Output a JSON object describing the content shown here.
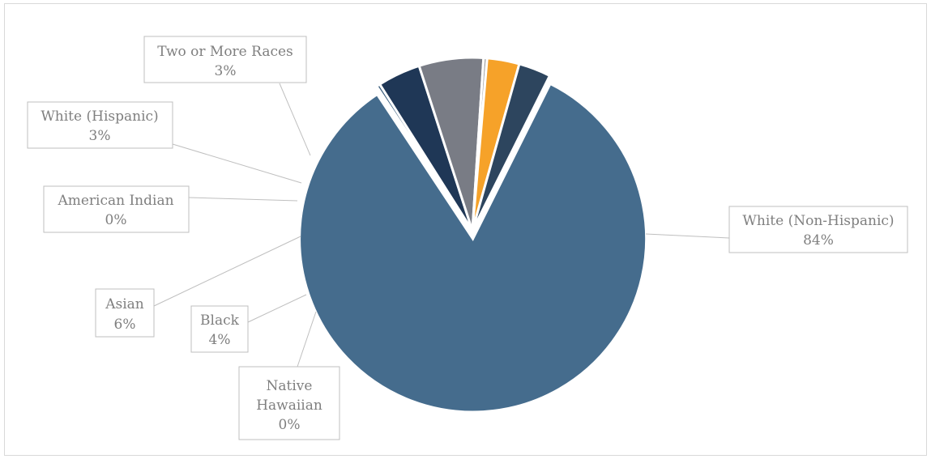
{
  "chart_data": {
    "type": "pie",
    "title": "",
    "legend": "none",
    "slices": [
      {
        "label": "White (Non-Hispanic)",
        "value": 84,
        "display": "84%",
        "color": "#456c8d"
      },
      {
        "label": "Native Hawaiian",
        "value": 0,
        "display": "0%",
        "color": "#3b5f7e"
      },
      {
        "label": "Black",
        "value": 4,
        "display": "4%",
        "color": "#1f3756"
      },
      {
        "label": "Asian",
        "value": 6,
        "display": "6%",
        "color": "#797c85"
      },
      {
        "label": "American Indian",
        "value": 0,
        "display": "0%",
        "color": "#a6a6a6"
      },
      {
        "label": "White (Hispanic)",
        "value": 3,
        "display": "3%",
        "color": "#f6a229"
      },
      {
        "label": "Two or More Races",
        "value": 3,
        "display": "3%",
        "color": "#2d455e"
      }
    ]
  },
  "labels": {
    "white_non_hispanic": {
      "name": "White (Non-Hispanic)",
      "pct": "84%"
    },
    "native_hawaiian": {
      "name_line1": "Native",
      "name_line2": "Hawaiian",
      "pct": "0%"
    },
    "black": {
      "name": "Black",
      "pct": "4%"
    },
    "asian": {
      "name": "Asian",
      "pct": "6%"
    },
    "american_indian": {
      "name": "American Indian",
      "pct": "0%"
    },
    "white_hispanic": {
      "name": "White (Hispanic)",
      "pct": "3%"
    },
    "two_or_more": {
      "name": "Two or More Races",
      "pct": "3%"
    }
  }
}
